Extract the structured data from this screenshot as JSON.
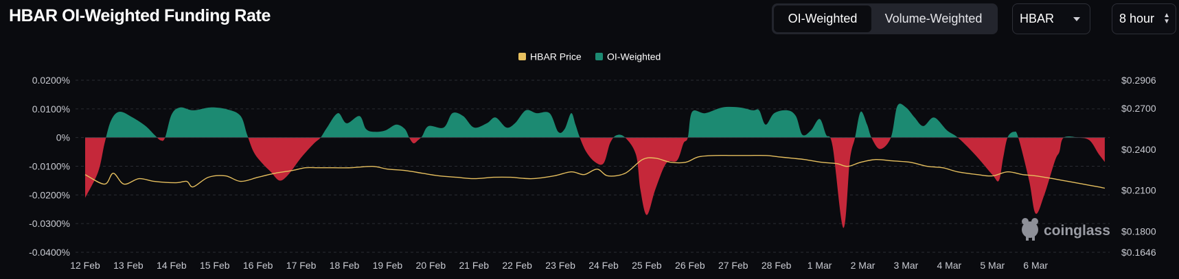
{
  "header": {
    "title": "HBAR OI-Weighted Funding Rate",
    "toggle": {
      "active": "OI-Weighted",
      "inactive": "Volume-Weighted"
    },
    "coin_select": "HBAR",
    "interval_select": "8 hour"
  },
  "watermark": {
    "text": "coinglass"
  },
  "colors": {
    "price_line": "#e7c05f",
    "positive": "#1c8a72",
    "negative": "#c5283a",
    "background": "#0a0b0f"
  },
  "chart_data": {
    "type": "area",
    "legend": [
      {
        "name": "HBAR Price",
        "color": "#e7c05f"
      },
      {
        "name": "OI-Weighted",
        "color": "#1c8a72"
      }
    ],
    "legend_position": "top-center",
    "x_ticks": [
      "12 Feb",
      "13 Feb",
      "14 Feb",
      "15 Feb",
      "16 Feb",
      "17 Feb",
      "18 Feb",
      "19 Feb",
      "20 Feb",
      "21 Feb",
      "22 Feb",
      "23 Feb",
      "24 Feb",
      "25 Feb",
      "26 Feb",
      "27 Feb",
      "28 Feb",
      "1 Mar",
      "2 Mar",
      "3 Mar",
      "4 Mar",
      "5 Mar",
      "6 Mar"
    ],
    "x_range_days": [
      0,
      23.65
    ],
    "left_axis": {
      "ticks": [
        "0.0200%",
        "0.0100%",
        "0%",
        "-0.0100%",
        "-0.0200%",
        "-0.0300%",
        "-0.0400%"
      ],
      "range": [
        -0.04,
        0.02
      ]
    },
    "right_axis": {
      "ticks": [
        "$0.2906",
        "$0.2700",
        "$0.2400",
        "$0.2100",
        "$0.1800",
        "$0.1646"
      ],
      "tick_values": [
        0.2906,
        0.27,
        0.24,
        0.21,
        0.18,
        0.1646
      ]
    },
    "grid": true,
    "series": [
      {
        "name": "OI-Weighted",
        "unit": "%",
        "points": [
          [
            0,
            -0.021
          ],
          [
            0.3,
            -0.012
          ],
          [
            0.45,
            -0.002
          ],
          [
            0.6,
            0.006
          ],
          [
            0.8,
            0.009
          ],
          [
            1.1,
            0.007
          ],
          [
            1.4,
            0.004
          ],
          [
            1.6,
            0.001
          ],
          [
            1.75,
            -0.001
          ],
          [
            1.85,
            0.0
          ],
          [
            2.0,
            0.008
          ],
          [
            2.2,
            0.0105
          ],
          [
            2.5,
            0.0095
          ],
          [
            2.9,
            0.0105
          ],
          [
            3.3,
            0.0098
          ],
          [
            3.6,
            0.0075
          ],
          [
            3.75,
            0.001
          ],
          [
            3.9,
            -0.005
          ],
          [
            4.1,
            -0.009
          ],
          [
            4.3,
            -0.012
          ],
          [
            4.5,
            -0.015
          ],
          [
            4.7,
            -0.013
          ],
          [
            5.0,
            -0.007
          ],
          [
            5.3,
            -0.002
          ],
          [
            5.45,
            0.0
          ],
          [
            5.6,
            0.0035
          ],
          [
            5.85,
            0.0085
          ],
          [
            6.05,
            0.005
          ],
          [
            6.35,
            0.0075
          ],
          [
            6.5,
            0.003
          ],
          [
            6.7,
            0.002
          ],
          [
            6.95,
            0.0025
          ],
          [
            7.2,
            0.0045
          ],
          [
            7.4,
            0.003
          ],
          [
            7.5,
            0.0
          ],
          [
            7.6,
            -0.002
          ],
          [
            7.7,
            -0.001
          ],
          [
            7.8,
            0.0005
          ],
          [
            7.95,
            0.004
          ],
          [
            8.3,
            0.0035
          ],
          [
            8.5,
            0.0085
          ],
          [
            8.75,
            0.0075
          ],
          [
            9.0,
            0.0035
          ],
          [
            9.3,
            0.005
          ],
          [
            9.5,
            0.007
          ],
          [
            9.75,
            0.0035
          ],
          [
            9.95,
            0.005
          ],
          [
            10.2,
            0.0095
          ],
          [
            10.45,
            0.0085
          ],
          [
            10.75,
            0.0085
          ],
          [
            10.95,
            0.002
          ],
          [
            11.1,
            0.003
          ],
          [
            11.25,
            0.0085
          ],
          [
            11.35,
            0.0045
          ],
          [
            11.45,
            0.0
          ],
          [
            11.6,
            -0.005
          ],
          [
            11.8,
            -0.0085
          ],
          [
            12.0,
            -0.009
          ],
          [
            12.15,
            -0.002
          ],
          [
            12.3,
            0.0008
          ],
          [
            12.5,
            0.0
          ],
          [
            12.75,
            -0.006
          ],
          [
            12.85,
            -0.018
          ],
          [
            13.0,
            -0.027
          ],
          [
            13.2,
            -0.018
          ],
          [
            13.45,
            -0.009
          ],
          [
            13.7,
            -0.008
          ],
          [
            13.85,
            -0.002
          ],
          [
            13.95,
            0.0
          ],
          [
            14.05,
            0.009
          ],
          [
            14.35,
            0.0085
          ],
          [
            14.75,
            0.0105
          ],
          [
            15.15,
            0.0105
          ],
          [
            15.45,
            0.0095
          ],
          [
            15.6,
            0.0095
          ],
          [
            15.75,
            0.0045
          ],
          [
            15.95,
            0.0085
          ],
          [
            16.25,
            0.0095
          ],
          [
            16.45,
            0.0075
          ],
          [
            16.6,
            0.001
          ],
          [
            16.8,
            0.0025
          ],
          [
            17.0,
            0.0065
          ],
          [
            17.15,
            0.001
          ],
          [
            17.3,
            -0.003
          ],
          [
            17.55,
            -0.0315
          ],
          [
            17.7,
            -0.008
          ],
          [
            17.82,
            0.0
          ],
          [
            17.95,
            0.009
          ],
          [
            18.1,
            0.0045
          ],
          [
            18.2,
            0.0
          ],
          [
            18.4,
            -0.004
          ],
          [
            18.65,
            0.0
          ],
          [
            18.8,
            0.011
          ],
          [
            19.0,
            0.0105
          ],
          [
            19.2,
            0.007
          ],
          [
            19.4,
            0.004
          ],
          [
            19.65,
            0.007
          ],
          [
            19.95,
            0.0025
          ],
          [
            20.2,
            0.0
          ],
          [
            20.6,
            -0.006
          ],
          [
            21.0,
            -0.013
          ],
          [
            21.15,
            -0.015
          ],
          [
            21.25,
            -0.007
          ],
          [
            21.35,
            0.0
          ],
          [
            21.5,
            0.002
          ],
          [
            21.6,
            0.0
          ],
          [
            21.85,
            -0.015
          ],
          [
            22.0,
            -0.0265
          ],
          [
            22.2,
            -0.02
          ],
          [
            22.45,
            -0.008
          ],
          [
            22.55,
            -0.005
          ],
          [
            22.65,
            0.0
          ],
          [
            23.0,
            0.0
          ],
          [
            23.25,
            -0.001
          ],
          [
            23.45,
            -0.0055
          ],
          [
            23.6,
            -0.0085
          ]
        ]
      },
      {
        "name": "HBAR Price",
        "unit": "USD",
        "points": [
          [
            0,
            0.2215
          ],
          [
            0.45,
            0.2145
          ],
          [
            0.65,
            0.2225
          ],
          [
            0.9,
            0.2145
          ],
          [
            1.25,
            0.2185
          ],
          [
            1.6,
            0.2165
          ],
          [
            2.1,
            0.2155
          ],
          [
            2.35,
            0.2165
          ],
          [
            2.5,
            0.2125
          ],
          [
            2.85,
            0.2195
          ],
          [
            3.25,
            0.2205
          ],
          [
            3.6,
            0.2165
          ],
          [
            4.0,
            0.2195
          ],
          [
            4.4,
            0.2225
          ],
          [
            4.8,
            0.2245
          ],
          [
            5.1,
            0.2265
          ],
          [
            5.4,
            0.2265
          ],
          [
            5.75,
            0.2265
          ],
          [
            6.15,
            0.2265
          ],
          [
            6.65,
            0.2275
          ],
          [
            7.0,
            0.2255
          ],
          [
            7.4,
            0.2245
          ],
          [
            7.8,
            0.2225
          ],
          [
            8.2,
            0.2205
          ],
          [
            8.6,
            0.2195
          ],
          [
            9.0,
            0.2185
          ],
          [
            9.45,
            0.2195
          ],
          [
            9.85,
            0.2195
          ],
          [
            10.35,
            0.2185
          ],
          [
            10.85,
            0.2205
          ],
          [
            11.25,
            0.2235
          ],
          [
            11.55,
            0.2215
          ],
          [
            11.85,
            0.2255
          ],
          [
            12.1,
            0.2205
          ],
          [
            12.5,
            0.2225
          ],
          [
            12.9,
            0.2325
          ],
          [
            13.2,
            0.2335
          ],
          [
            13.55,
            0.2305
          ],
          [
            13.9,
            0.2305
          ],
          [
            14.2,
            0.2345
          ],
          [
            14.6,
            0.2355
          ],
          [
            14.95,
            0.2355
          ],
          [
            15.35,
            0.2355
          ],
          [
            15.75,
            0.2355
          ],
          [
            16.05,
            0.2345
          ],
          [
            16.35,
            0.2335
          ],
          [
            16.65,
            0.2325
          ],
          [
            17.05,
            0.2305
          ],
          [
            17.4,
            0.2295
          ],
          [
            17.65,
            0.2275
          ],
          [
            17.95,
            0.2305
          ],
          [
            18.3,
            0.2325
          ],
          [
            18.7,
            0.2315
          ],
          [
            19.1,
            0.2305
          ],
          [
            19.5,
            0.2275
          ],
          [
            19.85,
            0.2265
          ],
          [
            20.2,
            0.2235
          ],
          [
            20.65,
            0.2215
          ],
          [
            21.0,
            0.2205
          ],
          [
            21.35,
            0.2235
          ],
          [
            21.7,
            0.2215
          ],
          [
            22.0,
            0.2205
          ],
          [
            22.4,
            0.2185
          ],
          [
            22.75,
            0.2165
          ],
          [
            23.1,
            0.2145
          ],
          [
            23.45,
            0.2125
          ],
          [
            23.6,
            0.2115
          ]
        ]
      }
    ]
  }
}
